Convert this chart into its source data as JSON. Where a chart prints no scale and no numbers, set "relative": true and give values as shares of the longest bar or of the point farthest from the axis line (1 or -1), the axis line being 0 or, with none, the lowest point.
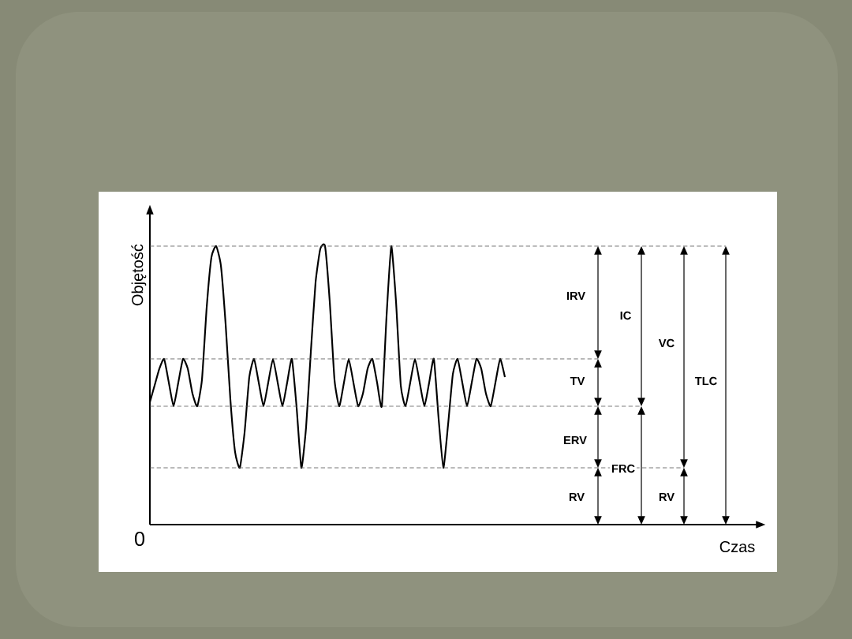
{
  "chart_data": {
    "type": "line",
    "relative": true,
    "ylabel": "Objętość",
    "color": "#000000",
    "categories": [
      null,
      null,
      null,
      null,
      null,
      null,
      null,
      null,
      null,
      null,
      null,
      null,
      null,
      null,
      null,
      null,
      null,
      null,
      null,
      null,
      null,
      null,
      null,
      null,
      null,
      null,
      null,
      null,
      null,
      null,
      null,
      null,
      null,
      null,
      null,
      null,
      null,
      null,
      null,
      null,
      null,
      null,
      null,
      null,
      null,
      null,
      null,
      null,
      null,
      null,
      null,
      null,
      null,
      null,
      null,
      null,
      null,
      null,
      null,
      null,
      null,
      null,
      null,
      null,
      null,
      null,
      null,
      null,
      null,
      null,
      null,
      null,
      null,
      null,
      null,
      null
    ],
    "values": [
      0.44,
      0.5,
      0.56,
      0.595,
      0.51,
      0.425,
      0.51,
      0.595,
      0.56,
      0.47,
      0.425,
      0.52,
      0.78,
      0.96,
      1.0,
      0.93,
      0.72,
      0.45,
      0.26,
      0.204,
      0.33,
      0.53,
      0.595,
      0.51,
      0.425,
      0.51,
      0.595,
      0.51,
      0.425,
      0.51,
      0.595,
      0.42,
      0.204,
      0.35,
      0.62,
      0.87,
      0.99,
      1.0,
      0.8,
      0.52,
      0.425,
      0.51,
      0.595,
      0.51,
      0.425,
      0.47,
      0.56,
      0.595,
      0.51,
      0.425,
      0.75,
      1.0,
      0.8,
      0.5,
      0.425,
      0.51,
      0.595,
      0.51,
      0.425,
      0.51,
      0.595,
      0.38,
      0.204,
      0.36,
      0.54,
      0.595,
      0.51,
      0.425,
      0.51,
      0.595,
      0.56,
      0.47,
      0.425,
      0.51,
      0.595,
      0.53
    ],
    "ref_lines": [
      {
        "axis": "y",
        "value": 1.0,
        "color": "#555555",
        "line_style": "dashed"
      },
      {
        "axis": "y",
        "value": 0.595,
        "color": "#555555",
        "line_style": "dashed"
      },
      {
        "axis": "y",
        "value": 0.425,
        "color": "#555555",
        "line_style": "dashed"
      },
      {
        "axis": "y",
        "value": 0.204,
        "color": "#555555",
        "line_style": "dashed"
      }
    ],
    "annotations": [
      "0",
      "IRV",
      "TV",
      "ERV",
      "RV",
      "IC",
      "FRC",
      "VC",
      "RV",
      "TLC",
      "Czas"
    ]
  }
}
